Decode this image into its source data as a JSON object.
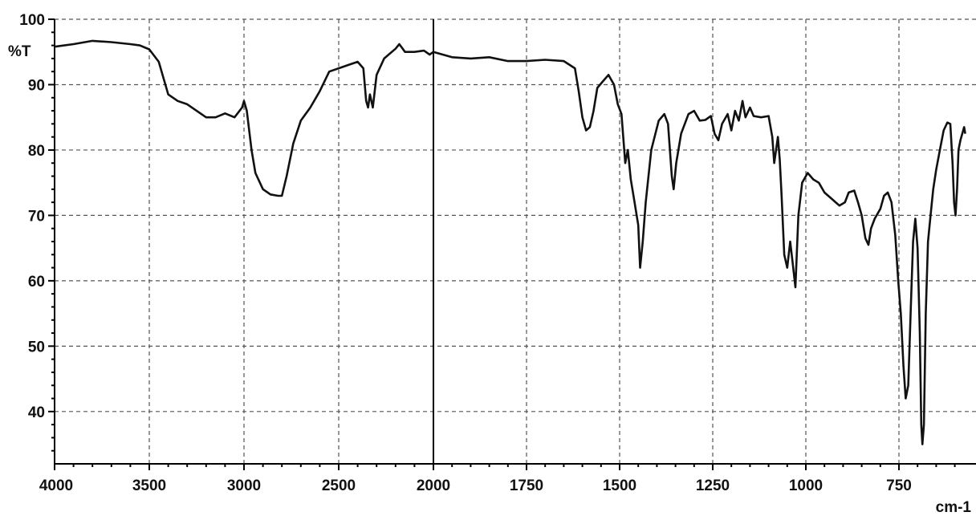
{
  "chart_data": {
    "type": "line",
    "ylabel": "%T",
    "xlabel": "cm-1",
    "x_ticks": [
      4000,
      3500,
      3000,
      2500,
      2000,
      1750,
      1500,
      1250,
      1000,
      750
    ],
    "y_ticks": [
      40,
      50,
      60,
      70,
      80,
      90,
      100
    ],
    "ylim": [
      32,
      100
    ],
    "grid": true,
    "x_axis_scale_change": 2000,
    "series": [
      {
        "points": [
          [
            4000,
            95.8
          ],
          [
            3900,
            96.2
          ],
          [
            3800,
            96.7
          ],
          [
            3700,
            96.5
          ],
          [
            3600,
            96.2
          ],
          [
            3550,
            96.0
          ],
          [
            3500,
            95.4
          ],
          [
            3450,
            93.5
          ],
          [
            3400,
            88.5
          ],
          [
            3350,
            87.5
          ],
          [
            3300,
            87.0
          ],
          [
            3250,
            86.0
          ],
          [
            3200,
            85.0
          ],
          [
            3150,
            85.0
          ],
          [
            3100,
            85.6
          ],
          [
            3050,
            85.0
          ],
          [
            3010,
            86.5
          ],
          [
            3000,
            87.5
          ],
          [
            2985,
            86.0
          ],
          [
            2960,
            80.0
          ],
          [
            2940,
            76.5
          ],
          [
            2900,
            74.0
          ],
          [
            2860,
            73.2
          ],
          [
            2820,
            73.0
          ],
          [
            2800,
            73.0
          ],
          [
            2775,
            76.0
          ],
          [
            2740,
            81.0
          ],
          [
            2700,
            84.5
          ],
          [
            2650,
            86.5
          ],
          [
            2600,
            89.0
          ],
          [
            2550,
            92.0
          ],
          [
            2500,
            92.5
          ],
          [
            2450,
            93.0
          ],
          [
            2400,
            93.5
          ],
          [
            2370,
            92.5
          ],
          [
            2355,
            87.5
          ],
          [
            2345,
            86.5
          ],
          [
            2335,
            88.5
          ],
          [
            2320,
            86.5
          ],
          [
            2300,
            91.5
          ],
          [
            2260,
            94.0
          ],
          [
            2200,
            95.5
          ],
          [
            2180,
            96.2
          ],
          [
            2150,
            95.0
          ],
          [
            2100,
            95.0
          ],
          [
            2050,
            95.2
          ],
          [
            2020,
            94.6
          ],
          [
            2000,
            95.0
          ],
          [
            1950,
            94.2
          ],
          [
            1900,
            94.0
          ],
          [
            1850,
            94.2
          ],
          [
            1800,
            93.6
          ],
          [
            1750,
            93.6
          ],
          [
            1700,
            93.8
          ],
          [
            1650,
            93.6
          ],
          [
            1620,
            92.5
          ],
          [
            1610,
            89.0
          ],
          [
            1600,
            85.0
          ],
          [
            1590,
            83.0
          ],
          [
            1580,
            83.5
          ],
          [
            1570,
            86.0
          ],
          [
            1560,
            89.5
          ],
          [
            1545,
            90.5
          ],
          [
            1530,
            91.5
          ],
          [
            1515,
            90.0
          ],
          [
            1505,
            87.0
          ],
          [
            1495,
            85.5
          ],
          [
            1485,
            78.0
          ],
          [
            1478,
            80.0
          ],
          [
            1470,
            75.5
          ],
          [
            1460,
            72.0
          ],
          [
            1450,
            68.5
          ],
          [
            1445,
            62.0
          ],
          [
            1438,
            66.0
          ],
          [
            1430,
            72.0
          ],
          [
            1415,
            80.0
          ],
          [
            1395,
            84.5
          ],
          [
            1380,
            85.5
          ],
          [
            1370,
            84.0
          ],
          [
            1360,
            76.0
          ],
          [
            1355,
            74.0
          ],
          [
            1348,
            78.0
          ],
          [
            1335,
            82.5
          ],
          [
            1315,
            85.5
          ],
          [
            1300,
            86.0
          ],
          [
            1285,
            84.5
          ],
          [
            1270,
            84.6
          ],
          [
            1255,
            85.2
          ],
          [
            1245,
            82.5
          ],
          [
            1235,
            81.5
          ],
          [
            1225,
            84.0
          ],
          [
            1210,
            85.5
          ],
          [
            1200,
            83.0
          ],
          [
            1190,
            86.0
          ],
          [
            1180,
            84.5
          ],
          [
            1170,
            87.5
          ],
          [
            1162,
            85.0
          ],
          [
            1150,
            86.5
          ],
          [
            1140,
            85.2
          ],
          [
            1120,
            85.0
          ],
          [
            1100,
            85.2
          ],
          [
            1090,
            82.0
          ],
          [
            1085,
            78.0
          ],
          [
            1080,
            80.0
          ],
          [
            1075,
            82.0
          ],
          [
            1070,
            78.5
          ],
          [
            1065,
            73.0
          ],
          [
            1058,
            64.0
          ],
          [
            1050,
            62.0
          ],
          [
            1042,
            66.0
          ],
          [
            1035,
            62.5
          ],
          [
            1028,
            59.0
          ],
          [
            1020,
            70.0
          ],
          [
            1010,
            75.0
          ],
          [
            995,
            76.5
          ],
          [
            980,
            75.5
          ],
          [
            965,
            75.0
          ],
          [
            950,
            73.5
          ],
          [
            930,
            72.5
          ],
          [
            910,
            71.5
          ],
          [
            895,
            72.0
          ],
          [
            885,
            73.5
          ],
          [
            870,
            73.8
          ],
          [
            860,
            72.0
          ],
          [
            850,
            70.0
          ],
          [
            840,
            66.5
          ],
          [
            832,
            65.5
          ],
          [
            825,
            68.0
          ],
          [
            815,
            69.5
          ],
          [
            800,
            71.0
          ],
          [
            790,
            73.0
          ],
          [
            780,
            73.5
          ],
          [
            770,
            72.0
          ],
          [
            760,
            67.0
          ],
          [
            752,
            60.0
          ],
          [
            745,
            55.0
          ],
          [
            738,
            47.0
          ],
          [
            732,
            42.0
          ],
          [
            725,
            44.0
          ],
          [
            718,
            56.0
          ],
          [
            712,
            66.0
          ],
          [
            706,
            69.5
          ],
          [
            700,
            65.0
          ],
          [
            694,
            52.0
          ],
          [
            690,
            38.0
          ],
          [
            687,
            35.0
          ],
          [
            683,
            38.0
          ],
          [
            678,
            55.0
          ],
          [
            672,
            66.0
          ],
          [
            665,
            70.0
          ],
          [
            658,
            74.0
          ],
          [
            650,
            77.0
          ],
          [
            640,
            80.0
          ],
          [
            630,
            83.0
          ],
          [
            620,
            84.2
          ],
          [
            612,
            84.0
          ],
          [
            606,
            78.0
          ],
          [
            602,
            72.0
          ],
          [
            598,
            70.0
          ],
          [
            594,
            74.0
          ],
          [
            590,
            80.0
          ],
          [
            585,
            81.5
          ],
          [
            580,
            82.5
          ],
          [
            575,
            83.5
          ],
          [
            572,
            82.5
          ]
        ]
      }
    ]
  }
}
